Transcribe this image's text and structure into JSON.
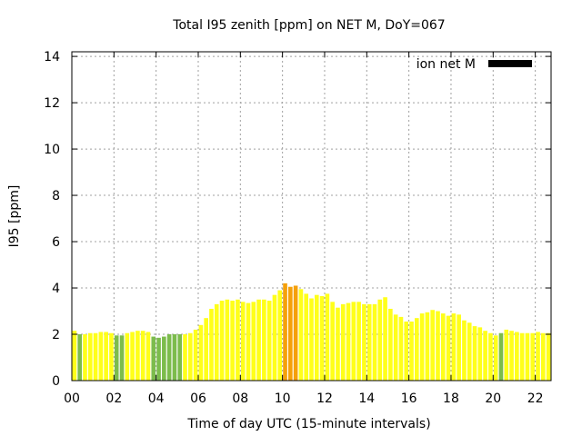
{
  "chart_data": {
    "type": "bar",
    "title": "Total I95 zenith [ppm] on NET M, DoY=067",
    "xlabel": "Time of day UTC (15-minute intervals)",
    "ylabel": "I95 [ppm]",
    "ylim": [
      0,
      14.2
    ],
    "xlim": [
      0,
      22.75
    ],
    "yticks": [
      0,
      2,
      4,
      6,
      8,
      10,
      12,
      14
    ],
    "xticks": [
      "00",
      "02",
      "04",
      "06",
      "08",
      "10",
      "12",
      "14",
      "16",
      "18",
      "20",
      "22"
    ],
    "grid": true,
    "legend_position": "top-right",
    "series": [
      {
        "name": "ion net M",
        "legend_color": "#000000",
        "bar_width_hours": 0.2,
        "color_scale": {
          "green": "#7cbc4c",
          "yellow": "#ffff1a",
          "orange": "#f5a00a"
        },
        "x": [
          0.125,
          0.375,
          0.625,
          0.875,
          1.125,
          1.375,
          1.625,
          1.875,
          2.125,
          2.375,
          2.625,
          2.875,
          3.125,
          3.375,
          3.625,
          3.875,
          4.125,
          4.375,
          4.625,
          4.875,
          5.125,
          5.375,
          5.625,
          5.875,
          6.125,
          6.375,
          6.625,
          6.875,
          7.125,
          7.375,
          7.625,
          7.875,
          8.125,
          8.375,
          8.625,
          8.875,
          9.125,
          9.375,
          9.625,
          9.875,
          10.125,
          10.375,
          10.625,
          10.875,
          11.125,
          11.375,
          11.625,
          11.875,
          12.125,
          12.375,
          12.625,
          12.875,
          13.125,
          13.375,
          13.625,
          13.875,
          14.125,
          14.375,
          14.625,
          14.875,
          15.125,
          15.375,
          15.625,
          15.875,
          16.125,
          16.375,
          16.625,
          16.875,
          17.125,
          17.375,
          17.625,
          17.875,
          18.125,
          18.375,
          18.625,
          18.875,
          19.125,
          19.375,
          19.625,
          19.875,
          20.125,
          20.375,
          20.625,
          20.875,
          21.125,
          21.375,
          21.625,
          21.875,
          22.125,
          22.375,
          22.625
        ],
        "values": [
          2.15,
          2.0,
          2.0,
          2.05,
          2.05,
          2.1,
          2.1,
          2.05,
          1.95,
          1.95,
          2.05,
          2.1,
          2.15,
          2.15,
          2.1,
          1.9,
          1.85,
          1.9,
          2.0,
          2.0,
          2.0,
          2.0,
          2.05,
          2.2,
          2.4,
          2.7,
          3.1,
          3.3,
          3.45,
          3.5,
          3.45,
          3.5,
          3.4,
          3.35,
          3.4,
          3.5,
          3.5,
          3.45,
          3.7,
          3.9,
          4.2,
          4.05,
          4.1,
          3.95,
          3.75,
          3.55,
          3.7,
          3.65,
          3.75,
          3.4,
          3.15,
          3.3,
          3.35,
          3.4,
          3.4,
          3.3,
          3.3,
          3.3,
          3.5,
          3.6,
          3.1,
          2.85,
          2.75,
          2.55,
          2.55,
          2.7,
          2.9,
          2.95,
          3.05,
          3.0,
          2.9,
          2.8,
          2.9,
          2.85,
          2.6,
          2.5,
          2.35,
          2.3,
          2.15,
          2.05,
          1.95,
          2.05,
          2.2,
          2.15,
          2.1,
          2.05,
          2.05,
          2.05,
          2.1,
          2.05,
          2.05
        ],
        "colors": [
          "yellow",
          "green",
          "yellow",
          "yellow",
          "yellow",
          "yellow",
          "yellow",
          "yellow",
          "green",
          "green",
          "yellow",
          "yellow",
          "yellow",
          "yellow",
          "yellow",
          "green",
          "green",
          "green",
          "green",
          "green",
          "green",
          "yellow",
          "yellow",
          "yellow",
          "yellow",
          "yellow",
          "yellow",
          "yellow",
          "yellow",
          "yellow",
          "yellow",
          "yellow",
          "yellow",
          "yellow",
          "yellow",
          "yellow",
          "yellow",
          "yellow",
          "yellow",
          "yellow",
          "orange",
          "orange",
          "orange",
          "yellow",
          "yellow",
          "yellow",
          "yellow",
          "yellow",
          "yellow",
          "yellow",
          "yellow",
          "yellow",
          "yellow",
          "yellow",
          "yellow",
          "yellow",
          "yellow",
          "yellow",
          "yellow",
          "yellow",
          "yellow",
          "yellow",
          "yellow",
          "yellow",
          "yellow",
          "yellow",
          "yellow",
          "yellow",
          "yellow",
          "yellow",
          "yellow",
          "yellow",
          "yellow",
          "yellow",
          "yellow",
          "yellow",
          "yellow",
          "yellow",
          "yellow",
          "yellow",
          "yellow",
          "green",
          "yellow",
          "yellow",
          "yellow",
          "yellow",
          "yellow",
          "yellow",
          "yellow",
          "yellow",
          "yellow"
        ]
      }
    ]
  }
}
